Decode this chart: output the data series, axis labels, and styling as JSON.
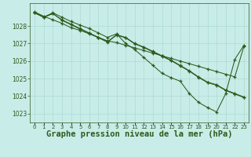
{
  "title": "Graphe pression niveau de la mer (hPa)",
  "hours": [
    0,
    1,
    2,
    3,
    4,
    5,
    6,
    7,
    8,
    9,
    10,
    11,
    12,
    13,
    14,
    15,
    16,
    17,
    18,
    19,
    20,
    21,
    22,
    23
  ],
  "line1": [
    1028.8,
    1028.55,
    1028.35,
    1028.15,
    1027.9,
    1027.75,
    1027.55,
    1027.35,
    1027.15,
    1027.05,
    1026.9,
    1026.75,
    1026.6,
    1026.45,
    1026.3,
    1026.15,
    1026.0,
    1025.85,
    1025.7,
    1025.55,
    1025.4,
    1025.25,
    1025.1,
    1026.85
  ],
  "line2": [
    1028.75,
    1028.5,
    1028.75,
    1028.5,
    1028.25,
    1028.05,
    1027.85,
    1027.6,
    1027.35,
    1027.55,
    1027.0,
    1026.65,
    1026.2,
    1025.75,
    1025.3,
    1025.05,
    1024.85,
    1024.15,
    1023.65,
    1023.35,
    1023.1,
    1024.15,
    1026.1,
    1026.9
  ],
  "line3": [
    1028.75,
    1028.5,
    1028.7,
    1028.35,
    1028.1,
    1027.85,
    1027.6,
    1027.35,
    1027.1,
    1027.5,
    1027.35,
    1027.0,
    1026.8,
    1026.55,
    1026.3,
    1026.05,
    1025.75,
    1025.45,
    1025.1,
    1024.8,
    1024.65,
    1024.35,
    1024.15,
    1023.95
  ],
  "line4": [
    1028.75,
    1028.5,
    1028.72,
    1028.32,
    1028.07,
    1027.82,
    1027.58,
    1027.33,
    1027.08,
    1027.48,
    1027.32,
    1026.98,
    1026.77,
    1026.52,
    1026.27,
    1026.02,
    1025.72,
    1025.42,
    1025.07,
    1024.77,
    1024.62,
    1024.32,
    1024.12,
    1023.92
  ],
  "line_color": "#2d5a1b",
  "bg_color": "#c8ece8",
  "grid_color": "#a8d8d0",
  "ylim": [
    1022.5,
    1029.3
  ],
  "yticks": [
    1023,
    1024,
    1025,
    1026,
    1027,
    1028
  ],
  "tick_fontsize": 5.5,
  "title_fontsize": 7.5
}
